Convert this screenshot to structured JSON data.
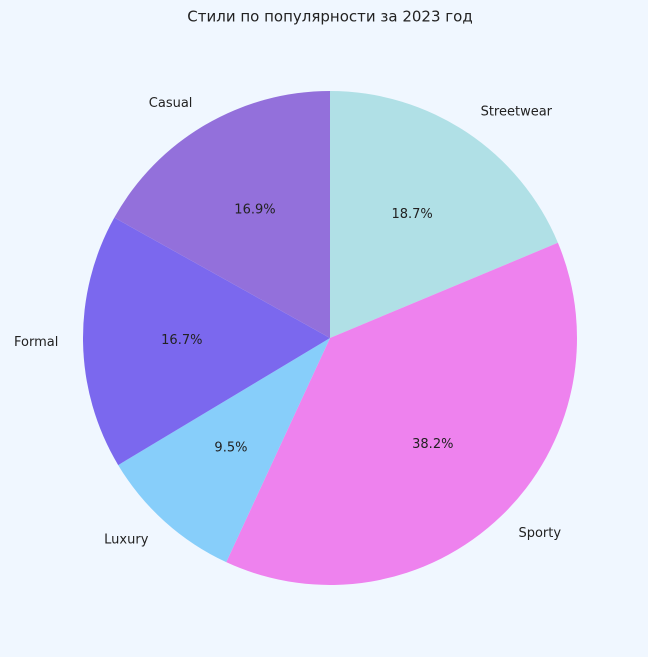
{
  "chart_data": {
    "type": "pie",
    "title": "Стили по популярности за 2023 год",
    "categories": [
      "Streetwear",
      "Sporty",
      "Luxury",
      "Formal",
      "Casual"
    ],
    "values": [
      18.7,
      38.2,
      9.5,
      16.7,
      16.9
    ],
    "value_labels": [
      "18.7%",
      "38.2%",
      "9.5%",
      "16.7%",
      "16.9%"
    ],
    "colors": [
      "#b0e0e6",
      "#ee82ee",
      "#87cefa",
      "#7b68ee",
      "#9370db"
    ]
  }
}
